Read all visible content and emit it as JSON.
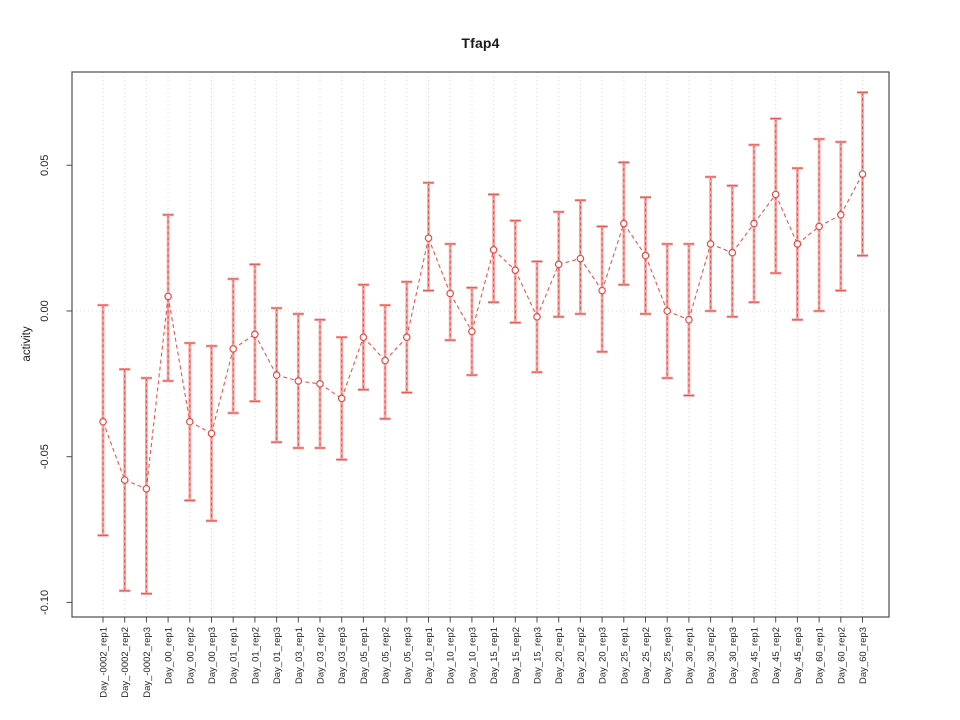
{
  "chart_data": {
    "type": "scatter",
    "subtype": "points-with-error-bars-connected",
    "title": "Tfap4",
    "xlabel": "",
    "ylabel": "activity",
    "legend": "none",
    "grid": {
      "vertical": "dotted line at every category",
      "horizontal": "dotted line at y=0 only"
    },
    "ylim": [
      -0.105,
      0.082
    ],
    "yticks": [
      {
        "value": -0.1,
        "label": "-0.10"
      },
      {
        "value": -0.05,
        "label": "-0.05"
      },
      {
        "value": 0.0,
        "label": "0.00"
      },
      {
        "value": 0.05,
        "label": "0.05"
      }
    ],
    "categories": [
      "Day_-0002_rep1",
      "Day_-0002_rep2",
      "Day_-0002_rep3",
      "Day_00_rep1",
      "Day_00_rep2",
      "Day_00_rep3",
      "Day_01_rep1",
      "Day_01_rep2",
      "Day_01_rep3",
      "Day_03_rep1",
      "Day_03_rep2",
      "Day_03_rep3",
      "Day_05_rep1",
      "Day_05_rep2",
      "Day_05_rep3",
      "Day_10_rep1",
      "Day_10_rep2",
      "Day_10_rep3",
      "Day_15_rep1",
      "Day_15_rep2",
      "Day_15_rep3",
      "Day_20_rep1",
      "Day_20_rep2",
      "Day_20_rep3",
      "Day_25_rep1",
      "Day_25_rep2",
      "Day_25_rep3",
      "Day_30_rep1",
      "Day_30_rep2",
      "Day_30_rep3",
      "Day_45_rep1",
      "Day_45_rep2",
      "Day_45_rep3",
      "Day_60_rep1",
      "Day_60_rep2",
      "Day_60_rep3"
    ],
    "series": [
      {
        "name": "activity",
        "values": [
          -0.038,
          -0.058,
          -0.061,
          0.005,
          -0.038,
          -0.042,
          -0.013,
          -0.008,
          -0.022,
          -0.024,
          -0.025,
          -0.03,
          -0.009,
          -0.017,
          -0.009,
          0.025,
          0.006,
          -0.007,
          0.021,
          0.014,
          -0.002,
          0.016,
          0.018,
          0.007,
          0.03,
          0.019,
          0.0,
          -0.003,
          0.023,
          0.02,
          0.03,
          0.04,
          0.023,
          0.029,
          0.033,
          0.047
        ],
        "lower": [
          -0.077,
          -0.096,
          -0.097,
          -0.024,
          -0.065,
          -0.072,
          -0.035,
          -0.031,
          -0.045,
          -0.047,
          -0.047,
          -0.051,
          -0.027,
          -0.037,
          -0.028,
          0.007,
          -0.01,
          -0.022,
          0.003,
          -0.004,
          -0.021,
          -0.002,
          -0.001,
          -0.014,
          0.009,
          -0.001,
          -0.023,
          -0.029,
          0.0,
          -0.002,
          0.003,
          0.013,
          -0.003,
          0.0,
          0.007,
          0.019
        ],
        "upper": [
          0.002,
          -0.02,
          -0.023,
          0.033,
          -0.011,
          -0.012,
          0.011,
          0.016,
          0.001,
          -0.001,
          -0.003,
          -0.009,
          0.009,
          0.002,
          0.01,
          0.044,
          0.023,
          0.008,
          0.04,
          0.031,
          0.017,
          0.034,
          0.038,
          0.029,
          0.051,
          0.039,
          0.023,
          0.023,
          0.046,
          0.043,
          0.057,
          0.066,
          0.049,
          0.059,
          0.058,
          0.075
        ]
      }
    ],
    "colors": {
      "point_stroke": "#e84a42",
      "connector": "#e8564e",
      "error_bar_solid": "#f5a3a0",
      "error_bar_dash": "#e4544c",
      "grid": "#d8d8d8",
      "axis": "#4d4d4d",
      "text": "#262626"
    }
  }
}
